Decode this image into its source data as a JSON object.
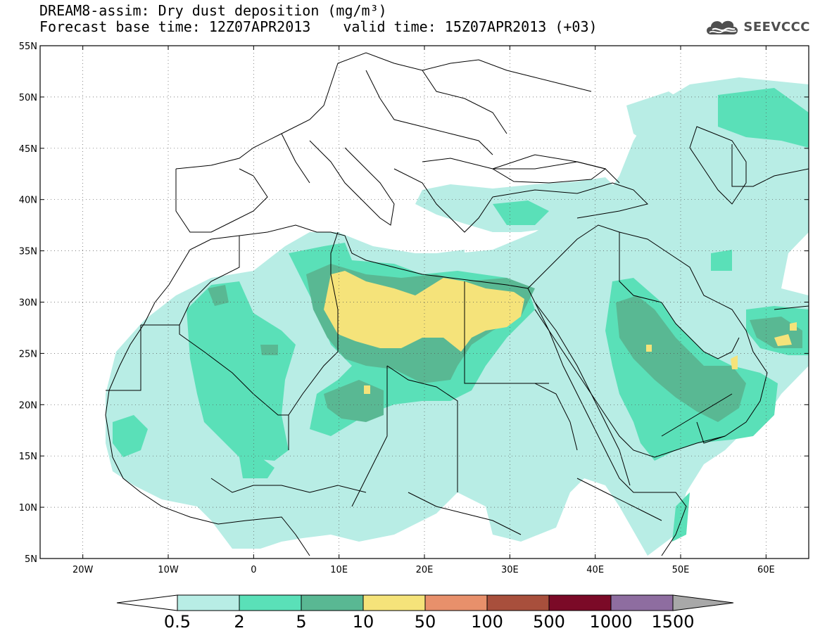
{
  "title": {
    "line1": "DREAM8-assim: Dry dust deposition (mg/m³)",
    "base_time": "Forecast base time: 12Z07APR2013",
    "valid_time": "valid time: 15Z07APR2013 (+03)"
  },
  "logo": {
    "text": "SEEVCCC",
    "icon": "cloud-icon"
  },
  "map": {
    "lon_range": [
      -25,
      65
    ],
    "lat_range": [
      5,
      55
    ],
    "lat_ticks": [
      "5N",
      "10N",
      "15N",
      "20N",
      "25N",
      "30N",
      "35N",
      "40N",
      "45N",
      "50N",
      "55N"
    ],
    "lon_ticks": [
      "20W",
      "10W",
      "0",
      "10E",
      "20E",
      "30E",
      "40E",
      "50E",
      "60E"
    ],
    "grid": "dotted"
  },
  "colorbar": {
    "labels": [
      "0.5",
      "2",
      "5",
      "10",
      "50",
      "100",
      "500",
      "1000",
      "1500"
    ],
    "colors": [
      "#b8ede5",
      "#5ae0b8",
      "#59b893",
      "#f5e37a",
      "#e8906b",
      "#a84f3c",
      "#7b0a27",
      "#8e6da0"
    ],
    "under_color": "#ffffff",
    "over_color": "#a8a8a8"
  }
}
